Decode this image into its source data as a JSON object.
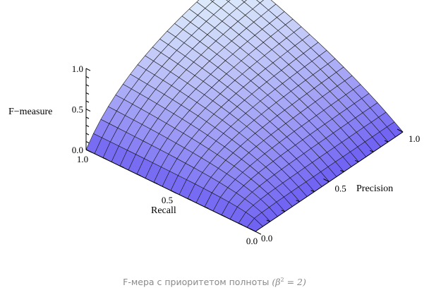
{
  "chart_data": {
    "type": "surface3d",
    "function": "F = (1 + beta^2) * P * R / (beta^2 * P + R)",
    "beta_squared": 2,
    "xlabel": "Precision",
    "ylabel": "Recall",
    "zlabel": "F−measure",
    "xlim": [
      0,
      1
    ],
    "ylim": [
      0,
      1
    ],
    "zlim": [
      0,
      1
    ],
    "x_ticks": [
      {
        "value": 0,
        "label": "0.0"
      },
      {
        "value": 0.5,
        "label": "0.5"
      },
      {
        "value": 1,
        "label": "1.0"
      }
    ],
    "y_ticks": [
      {
        "value": 0,
        "label": "0.0"
      },
      {
        "value": 0.5,
        "label": "0.5"
      },
      {
        "value": 1,
        "label": "1.0"
      }
    ],
    "z_ticks": [
      {
        "value": 0,
        "label": "0.0"
      },
      {
        "value": 0.5,
        "label": "0.5"
      },
      {
        "value": 1,
        "label": "1.0"
      }
    ],
    "mesh_lines_per_axis": 20,
    "colors": {
      "low": "#6b5cf2",
      "high": "#e6f6fb",
      "mesh": "#1a1a1a",
      "axis": "#000000"
    }
  },
  "caption": {
    "text": "F-мера с приоритетом полноты",
    "math_open": "(β",
    "math_sup": "2",
    "math_close": " = 2)"
  }
}
